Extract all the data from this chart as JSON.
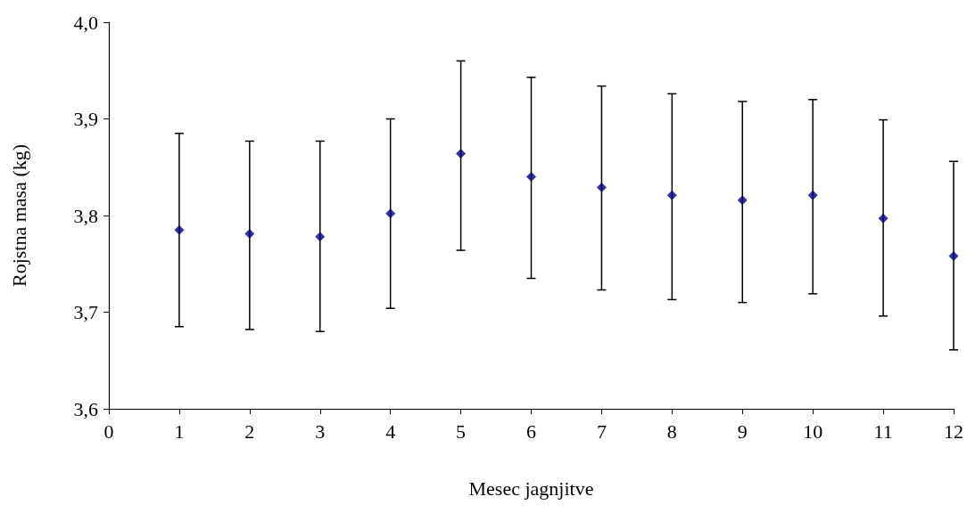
{
  "chart_data": {
    "type": "scatter",
    "xlabel": "Mesec jagnjitve",
    "ylabel": "Rojstna masa (kg)",
    "x": [
      1,
      2,
      3,
      4,
      5,
      6,
      7,
      8,
      9,
      10,
      11,
      12
    ],
    "series": [
      {
        "color": "#000080",
        "values": [
          3.785,
          3.781,
          3.778,
          3.802,
          3.864,
          3.84,
          3.829,
          3.821,
          3.816,
          3.821,
          3.797,
          3.758
        ],
        "errors": [
          [
            3.685,
            3.885
          ],
          [
            3.682,
            3.877
          ],
          [
            3.68,
            3.877
          ],
          [
            3.704,
            3.9
          ],
          [
            3.764,
            3.96
          ],
          [
            3.735,
            3.943
          ],
          [
            3.723,
            3.934
          ],
          [
            3.713,
            3.926
          ],
          [
            3.71,
            3.918
          ],
          [
            3.719,
            3.92
          ],
          [
            3.696,
            3.899
          ],
          [
            3.661,
            3.856
          ]
        ]
      }
    ],
    "xlim": [
      0,
      12
    ],
    "xticks": [
      0,
      1,
      2,
      3,
      4,
      5,
      6,
      7,
      8,
      9,
      10,
      11,
      12
    ],
    "ylim": [
      3.6,
      4.0
    ],
    "yticks": [
      {
        "value": 3.6,
        "label": "3,6"
      },
      {
        "value": 3.7,
        "label": "3,7"
      },
      {
        "value": 3.8,
        "label": "3,8"
      },
      {
        "value": 3.9,
        "label": "3,9"
      },
      {
        "value": 4.0,
        "label": "4,0"
      }
    ],
    "grid": false,
    "legend": false,
    "marker": "diamond"
  }
}
